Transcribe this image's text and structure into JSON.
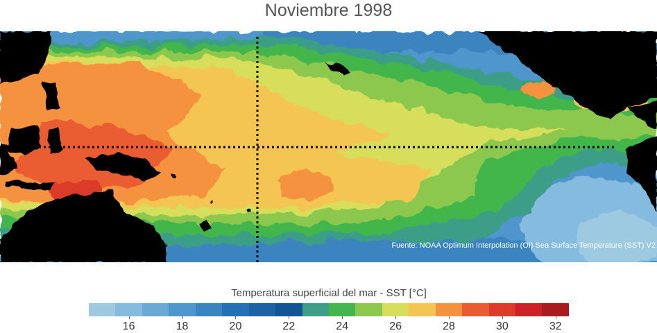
{
  "title": "Noviembre 1998",
  "source": "Fuente: NOAA Optimum Interpolation (OI) Sea Surface Temperature (SST) V2",
  "colorbar": {
    "title": "Temperatura superficial del mar - SST  [°C]",
    "tick_labels": [
      "16",
      "18",
      "20",
      "22",
      "24",
      "26",
      "28",
      "30",
      "32"
    ],
    "tick_values": [
      16,
      18,
      20,
      22,
      24,
      26,
      28,
      30,
      32
    ],
    "range": [
      15,
      33
    ],
    "colors": [
      "#9ecae1",
      "#85bbde",
      "#6aa9d6",
      "#4f96cc",
      "#3a84c0",
      "#2472b5",
      "#1b62a6",
      "#125596",
      "#3e9e88",
      "#43b54c",
      "#8cc84d",
      "#d6de5b",
      "#f4c553",
      "#f4923f",
      "#ea5c30",
      "#dc3b2a",
      "#cc2127",
      "#a81c1f"
    ]
  },
  "map": {
    "land_color": "#000000",
    "reference_lines": "equator and 180° meridian (dotted)"
  }
}
